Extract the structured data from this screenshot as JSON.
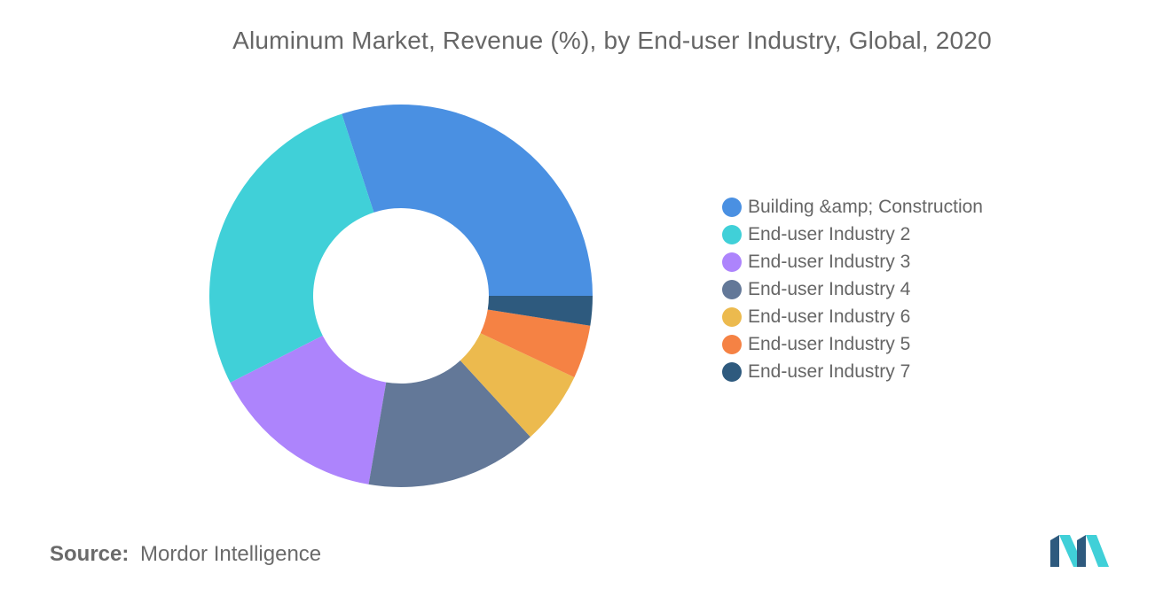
{
  "title": "Aluminum Market, Revenue (%), by End-user Industry, Global, 2020",
  "source": {
    "label": "Source:",
    "value": "Mordor Intelligence"
  },
  "chart_data": {
    "type": "pie",
    "donut": true,
    "title": "Aluminum Market, Revenue (%), by End-user Industry, Global, 2020",
    "legend_position": "right",
    "slices": [
      {
        "label": "Building &amp; Construction",
        "value": 30.0,
        "color": "#4a90e2"
      },
      {
        "label": "End-user Industry 2",
        "value": 27.5,
        "color": "#40d0d8"
      },
      {
        "label": "End-user Industry 3",
        "value": 14.8,
        "color": "#ad84fc"
      },
      {
        "label": "End-user Industry 4",
        "value": 14.5,
        "color": "#637898"
      },
      {
        "label": "End-user Industry 6",
        "value": 6.2,
        "color": "#ecba4e"
      },
      {
        "label": "End-user Industry 5",
        "value": 4.5,
        "color": "#f58244"
      },
      {
        "label": "End-user Industry 7",
        "value": 2.5,
        "color": "#2e5a7e"
      }
    ]
  },
  "logo": {
    "icon": "mordor-intelligence-logo-icon",
    "colors": [
      "#2e5a7e",
      "#40d0d8"
    ]
  }
}
